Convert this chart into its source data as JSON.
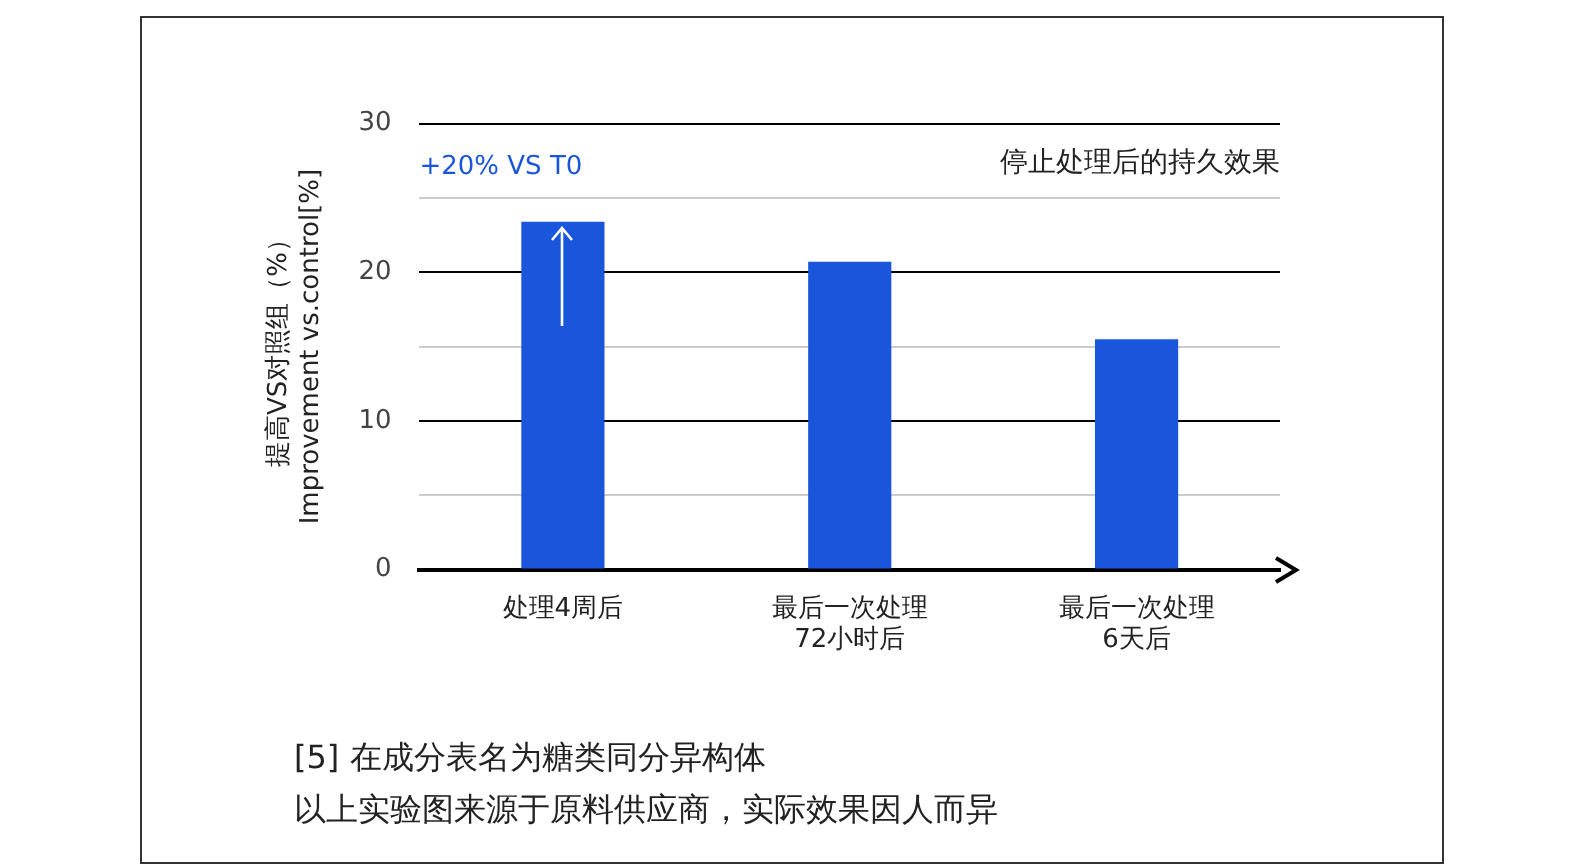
{
  "chart_data": {
    "type": "bar",
    "subtitle": "停止处理后的持久效果",
    "ylabel": "提高VS对照组（%）\nImprovement vs.control[%]",
    "categories": [
      "处理4周后",
      "最后一次处理\n72小时后",
      "最后一次处理\n6天后"
    ],
    "values": [
      23.4,
      20.7,
      15.5
    ],
    "color": "#1a56db",
    "ylim": [
      0,
      30
    ],
    "yticks": [
      0,
      {
        "value": 5,
        "label": null
      },
      10,
      {
        "value": 15,
        "label": null
      },
      20,
      {
        "value": 25,
        "label": null
      },
      30
    ],
    "grid": "y",
    "legend": false,
    "annotations": [
      "+20% VS T0",
      "[5] 在成分表名为糖类同分异构体",
      "以上实验图来源于原料供应商，实际效果因人而异"
    ]
  }
}
